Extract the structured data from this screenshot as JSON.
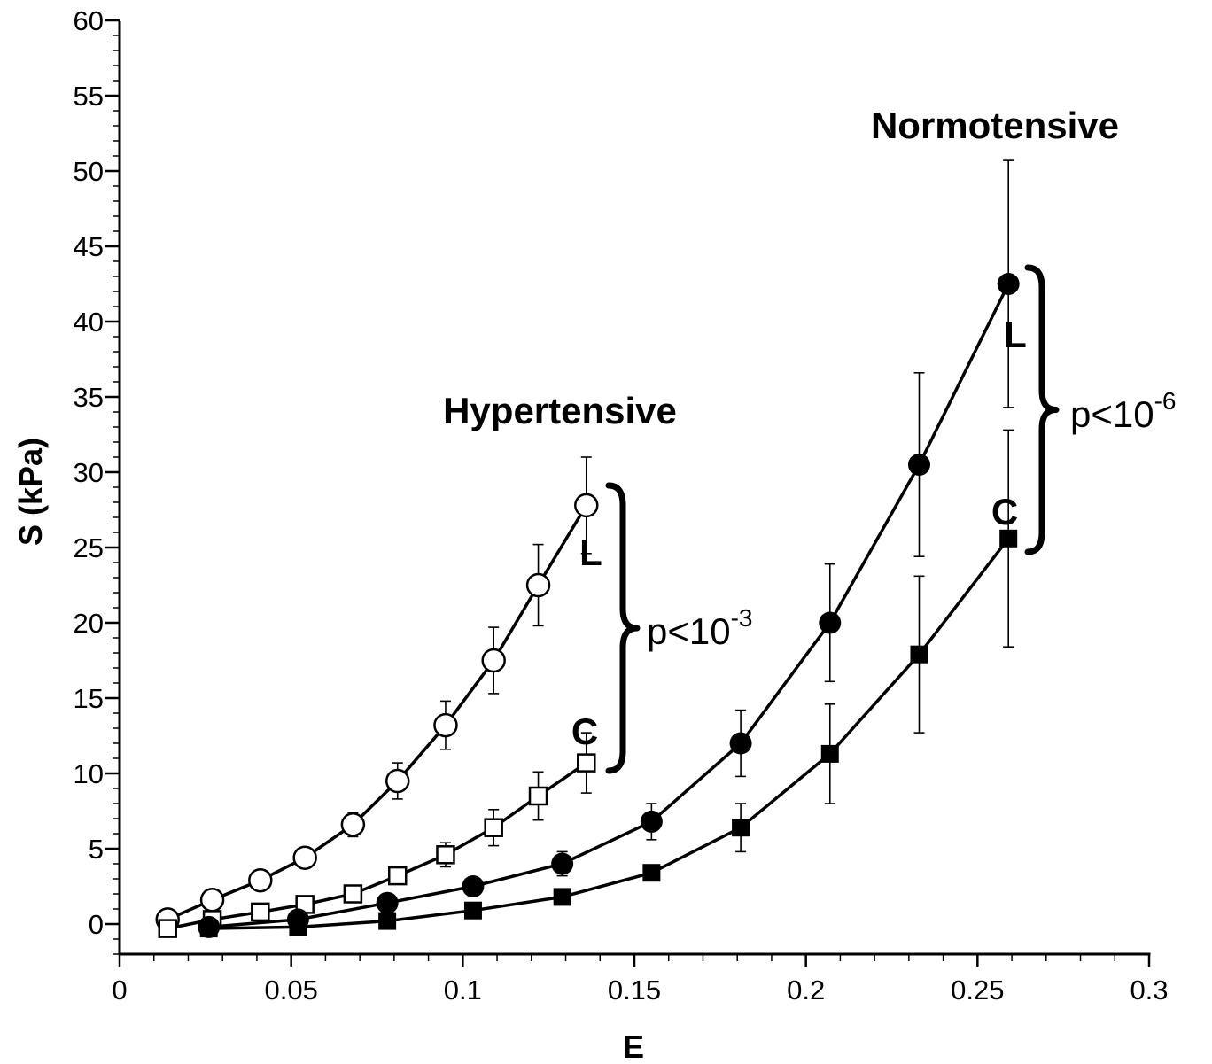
{
  "chart_data": {
    "type": "line",
    "xlabel": "E",
    "ylabel": "S (kPa)",
    "xlim": [
      0,
      0.3
    ],
    "ylim": [
      -2,
      60
    ],
    "xticks": [
      "0",
      "0.05",
      "0.1",
      "0.15",
      "0.2",
      "0.25",
      "0.3"
    ],
    "yticks": [
      "0",
      "5",
      "10",
      "15",
      "20",
      "25",
      "30",
      "35",
      "40",
      "45",
      "50",
      "55",
      "60"
    ],
    "grid": false,
    "series": [
      {
        "marker": "open-circle",
        "x": [
          0.014,
          0.027,
          0.041,
          0.068,
          0.054,
          0.081,
          0.095,
          0.109,
          0.122,
          0.136
        ],
        "y": [
          0.3,
          1.6,
          2.9,
          6.6,
          4.4,
          9.5,
          13.2,
          17.5,
          22.5,
          27.8
        ],
        "err": [
          0,
          0,
          0,
          0.8,
          0,
          1.2,
          1.6,
          2.2,
          2.7,
          3.2
        ]
      },
      {
        "marker": "open-square",
        "x": [
          0.014,
          0.027,
          0.041,
          0.054,
          0.068,
          0.081,
          0.095,
          0.109,
          0.122,
          0.136
        ],
        "y": [
          -0.3,
          0.3,
          0.8,
          1.3,
          2.0,
          3.2,
          4.6,
          6.4,
          8.5,
          10.7
        ],
        "err": [
          0,
          0,
          0,
          0,
          0.4,
          0.5,
          0.8,
          1.2,
          1.6,
          2.0
        ]
      },
      {
        "marker": "filled-circle",
        "x": [
          0.026,
          0.052,
          0.078,
          0.103,
          0.129,
          0.155,
          0.181,
          0.207,
          0.233,
          0.259
        ],
        "y": [
          -0.2,
          0.3,
          1.4,
          2.5,
          4.0,
          6.8,
          12.0,
          20.0,
          30.5,
          42.5
        ],
        "err": [
          0,
          0,
          0,
          0.6,
          0.8,
          1.2,
          2.2,
          3.9,
          6.1,
          8.2
        ]
      },
      {
        "marker": "filled-square",
        "x": [
          0.026,
          0.052,
          0.078,
          0.103,
          0.129,
          0.155,
          0.181,
          0.207,
          0.233,
          0.259
        ],
        "y": [
          -0.3,
          -0.2,
          0.2,
          0.9,
          1.8,
          3.4,
          6.4,
          11.3,
          17.9,
          25.6
        ],
        "err": [
          0,
          0,
          0,
          0,
          0,
          0.5,
          1.6,
          3.3,
          5.2,
          7.2
        ]
      }
    ],
    "annotations": [
      {
        "id": "hyper_title",
        "text": "Hypertensive"
      },
      {
        "id": "normo_title",
        "text": "Normotensive"
      },
      {
        "id": "hyper_L",
        "text": "L"
      },
      {
        "id": "hyper_C",
        "text": "C"
      },
      {
        "id": "normo_L",
        "text": "L"
      },
      {
        "id": "normo_C",
        "text": "C"
      },
      {
        "id": "hyper_p",
        "base": "p<10",
        "sup": "-3"
      },
      {
        "id": "normo_p",
        "base": "p<10",
        "sup": "-6"
      }
    ]
  }
}
